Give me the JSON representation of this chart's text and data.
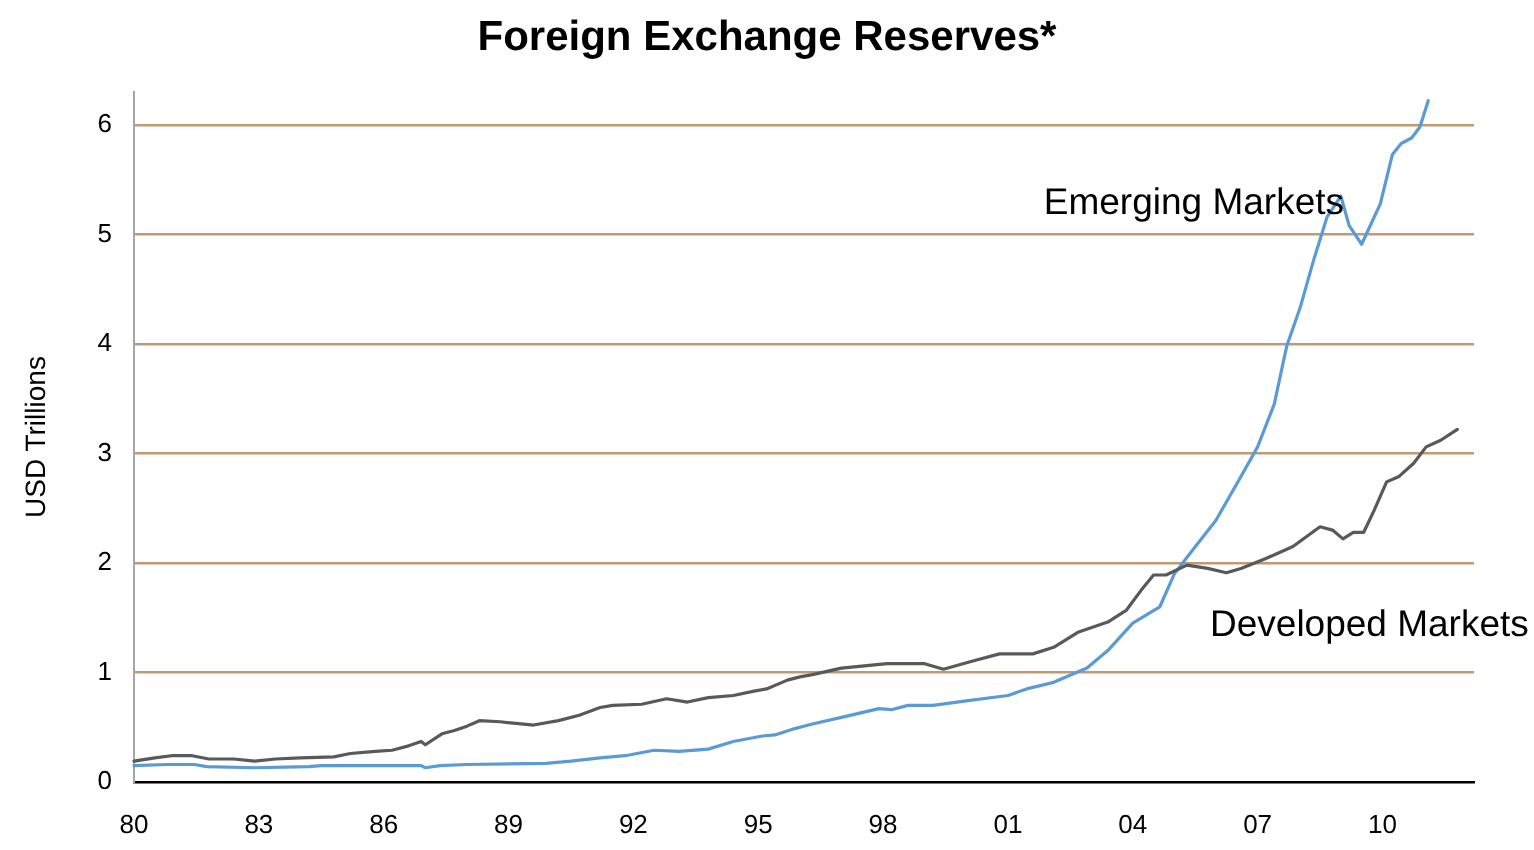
{
  "chart_data": {
    "type": "line",
    "title": "Foreign Exchange Reserves*",
    "ylabel": "USD Trillions",
    "xlim": [
      1980,
      2012.2
    ],
    "xticks": [
      {
        "value": 1980,
        "label": "80"
      },
      {
        "value": 1983,
        "label": "83"
      },
      {
        "value": 1986,
        "label": "86"
      },
      {
        "value": 1989,
        "label": "89"
      },
      {
        "value": 1992,
        "label": "92"
      },
      {
        "value": 1995,
        "label": "95"
      },
      {
        "value": 1998,
        "label": "98"
      },
      {
        "value": 2001,
        "label": "01"
      },
      {
        "value": 2004,
        "label": "04"
      },
      {
        "value": 2007,
        "label": "07"
      },
      {
        "value": 2010,
        "label": "10"
      }
    ],
    "ylim": [
      0,
      6.3
    ],
    "yticks": [
      0,
      1,
      2,
      3,
      4,
      5,
      6
    ],
    "grid": "y",
    "series": [
      {
        "name": "Developed Markets",
        "color": "#595959",
        "x": [
          1980.0,
          1980.5,
          1980.9,
          1981.4,
          1981.8,
          1982.4,
          1982.9,
          1983.4,
          1984.0,
          1984.8,
          1985.2,
          1985.8,
          1986.2,
          1986.6,
          1986.9,
          1987.0,
          1987.4,
          1987.7,
          1988.0,
          1988.3,
          1988.8,
          1989.3,
          1989.6,
          1990.2,
          1990.7,
          1991.2,
          1991.5,
          1992.2,
          1992.8,
          1993.3,
          1993.8,
          1994.4,
          1994.9,
          1995.2,
          1995.7,
          1996.0,
          1996.3,
          1997.0,
          1998.1,
          1999.0,
          1999.45,
          2000.2,
          2000.8,
          2001.6,
          2002.1,
          2002.7,
          2003.4,
          2003.85,
          2004.2,
          2004.5,
          2004.8,
          2005.3,
          2005.8,
          2006.25,
          2006.6,
          2007.2,
          2007.85,
          2008.5,
          2008.8,
          2009.05,
          2009.3,
          2009.55,
          2009.8,
          2010.1,
          2010.4,
          2010.75,
          2011.05,
          2011.4,
          2011.8
        ],
        "values": [
          0.19,
          0.22,
          0.24,
          0.24,
          0.21,
          0.21,
          0.19,
          0.21,
          0.22,
          0.23,
          0.26,
          0.28,
          0.29,
          0.33,
          0.37,
          0.34,
          0.44,
          0.47,
          0.51,
          0.56,
          0.55,
          0.53,
          0.52,
          0.56,
          0.61,
          0.68,
          0.7,
          0.71,
          0.76,
          0.73,
          0.77,
          0.79,
          0.83,
          0.85,
          0.93,
          0.96,
          0.98,
          1.04,
          1.08,
          1.08,
          1.03,
          1.11,
          1.17,
          1.17,
          1.23,
          1.37,
          1.46,
          1.57,
          1.75,
          1.89,
          1.89,
          1.98,
          1.95,
          1.91,
          1.95,
          2.04,
          2.15,
          2.33,
          2.3,
          2.22,
          2.28,
          2.28,
          2.48,
          2.74,
          2.79,
          2.91,
          3.06,
          3.12,
          3.22
        ]
      },
      {
        "name": "Emerging Markets",
        "color": "#5b9bd5",
        "x": [
          1980.0,
          1980.8,
          1981.45,
          1981.75,
          1982.9,
          1984.2,
          1984.5,
          1986.9,
          1987.0,
          1987.35,
          1988.0,
          1989.9,
          1990.5,
          1991.2,
          1991.8,
          1992.5,
          1993.1,
          1993.8,
          1994.4,
          1995.1,
          1995.4,
          1995.9,
          1996.3,
          1997.0,
          1997.9,
          1998.2,
          1998.6,
          1999.2,
          2000.0,
          2001.0,
          2001.45,
          2002.1,
          2002.9,
          2003.4,
          2004.0,
          2004.65,
          2005.0,
          2005.3,
          2006.0,
          2006.6,
          2007.0,
          2007.4,
          2007.7,
          2008.03,
          2008.35,
          2008.67,
          2009.0,
          2009.2,
          2009.5,
          2009.95,
          2010.24,
          2010.45,
          2010.7,
          2010.9,
          2011.1
        ],
        "values": [
          0.15,
          0.16,
          0.16,
          0.14,
          0.13,
          0.14,
          0.15,
          0.15,
          0.13,
          0.15,
          0.16,
          0.17,
          0.19,
          0.22,
          0.24,
          0.29,
          0.28,
          0.3,
          0.37,
          0.42,
          0.43,
          0.49,
          0.53,
          0.59,
          0.67,
          0.66,
          0.7,
          0.7,
          0.74,
          0.79,
          0.85,
          0.91,
          1.04,
          1.2,
          1.45,
          1.6,
          1.9,
          2.05,
          2.39,
          2.79,
          3.06,
          3.45,
          3.98,
          4.34,
          4.77,
          5.16,
          5.35,
          5.08,
          4.91,
          5.28,
          5.73,
          5.83,
          5.88,
          5.98,
          6.22
        ]
      }
    ]
  }
}
